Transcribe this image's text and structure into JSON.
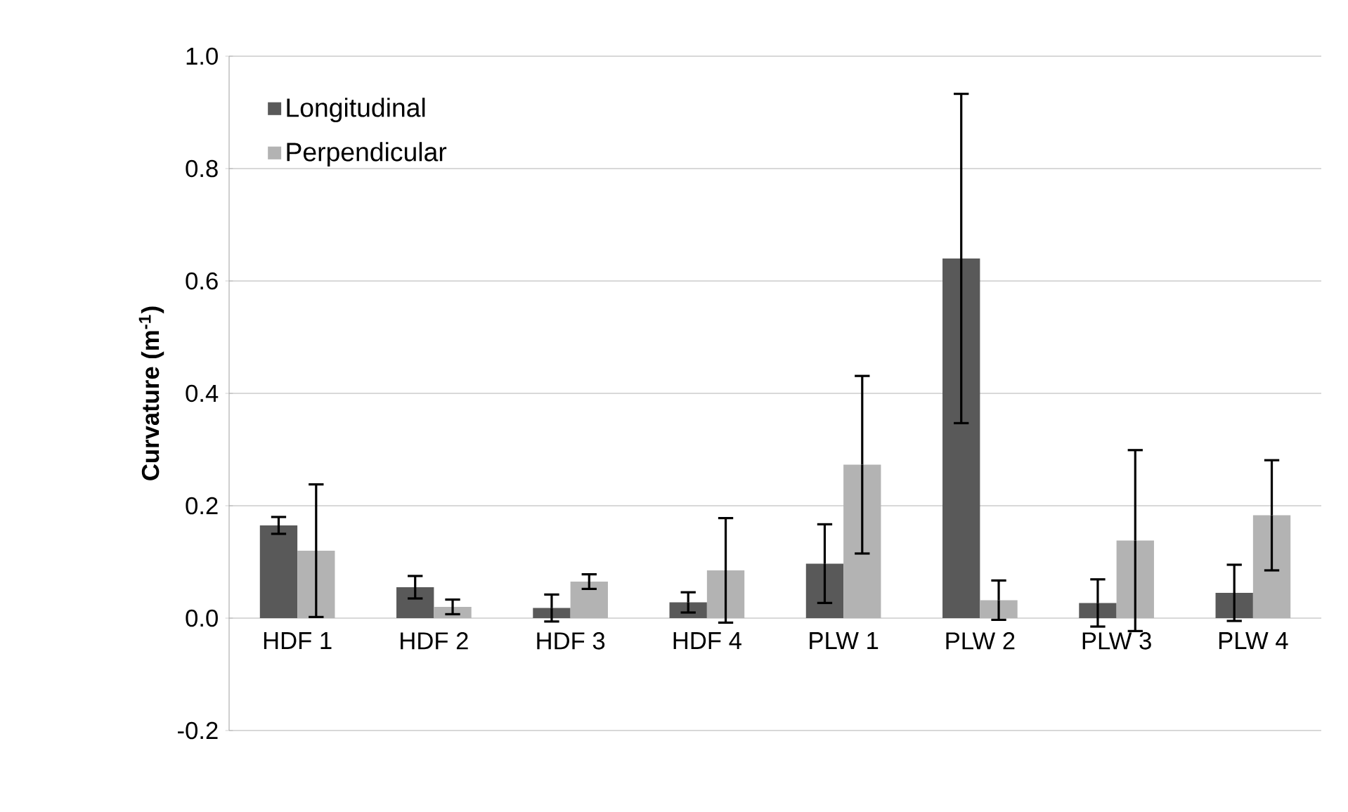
{
  "chart_data": {
    "type": "bar",
    "ylabel": "Curvature (m$^{-1}$)",
    "categories": [
      "HDF 1",
      "HDF 2",
      "HDF 3",
      "HDF 4",
      "PLW 1",
      "PLW 2",
      "PLW 3",
      "PLW 4"
    ],
    "series": [
      {
        "name": "Longitudinal",
        "color": "#595959",
        "values": [
          0.165,
          0.055,
          0.018,
          0.028,
          0.097,
          0.64,
          0.027,
          0.045
        ],
        "errors": [
          0.015,
          0.02,
          0.024,
          0.018,
          0.07,
          0.293,
          0.042,
          0.05
        ]
      },
      {
        "name": "Perpendicular",
        "color": "#b3b3b3",
        "values": [
          0.12,
          0.02,
          0.065,
          0.085,
          0.273,
          0.032,
          0.138,
          0.183
        ],
        "errors": [
          0.118,
          0.013,
          0.013,
          0.093,
          0.158,
          0.035,
          0.161,
          0.098
        ]
      }
    ],
    "ylim": [
      -0.2,
      1.0
    ],
    "yticks": [
      {
        "value": -0.2,
        "label": "-0.2"
      },
      {
        "value": 0,
        "label": "0.0"
      },
      {
        "value": 0.2,
        "label": "0.2"
      },
      {
        "value": 0.4,
        "label": "0.4"
      },
      {
        "value": 0.6,
        "label": "0.6"
      },
      {
        "value": 0.8,
        "label": "0.8"
      },
      {
        "value": 1.0,
        "label": "1.0"
      }
    ],
    "grid": "y",
    "legend": "top left"
  }
}
